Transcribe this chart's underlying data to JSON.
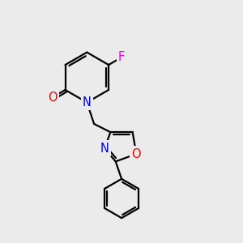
{
  "bg_color": "#ebebeb",
  "bond_color": "#000000",
  "bond_width": 1.6,
  "atom_colors": {
    "N": "#0000ee",
    "O_carbonyl": "#ee0000",
    "O_ring": "#ee0000",
    "F": "#ee00ee",
    "C": "#000000"
  },
  "font_size_atom": 10.5
}
